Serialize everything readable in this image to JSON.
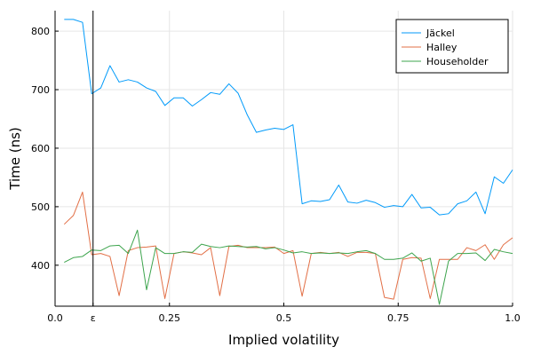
{
  "chart_data": {
    "type": "line",
    "title": "",
    "xlabel": "Implied volatility",
    "ylabel": "Time (ns)",
    "xlim": [
      0.0,
      1.0
    ],
    "ylim": [
      330,
      835
    ],
    "xticks": [
      {
        "value": 0.0,
        "label": "0.0"
      },
      {
        "value": 0.083,
        "label": "ε"
      },
      {
        "value": 0.25,
        "label": "0.25"
      },
      {
        "value": 0.5,
        "label": "0.5"
      },
      {
        "value": 0.75,
        "label": "0.75"
      },
      {
        "value": 1.0,
        "label": "1.0"
      }
    ],
    "yticks": [
      400,
      500,
      600,
      700,
      800
    ],
    "grid": true,
    "legend_position": "top-right",
    "vline_x": 0.083,
    "x": [
      0.02,
      0.04,
      0.06,
      0.08,
      0.1,
      0.12,
      0.14,
      0.16,
      0.18,
      0.2,
      0.22,
      0.24,
      0.26,
      0.28,
      0.3,
      0.32,
      0.34,
      0.36,
      0.38,
      0.4,
      0.42,
      0.44,
      0.46,
      0.48,
      0.5,
      0.52,
      0.54,
      0.56,
      0.58,
      0.6,
      0.62,
      0.64,
      0.66,
      0.68,
      0.7,
      0.72,
      0.74,
      0.76,
      0.78,
      0.8,
      0.82,
      0.84,
      0.86,
      0.88,
      0.9,
      0.92,
      0.94,
      0.96,
      0.98,
      1.0
    ],
    "series": [
      {
        "name": "Jäckel",
        "color": "#009AFA",
        "values": [
          820,
          820,
          815,
          693,
          703,
          741,
          713,
          717,
          713,
          703,
          697,
          673,
          686,
          686,
          672,
          683,
          695,
          692,
          710,
          694,
          657,
          627,
          631,
          634,
          632,
          640,
          505,
          510,
          509,
          512,
          537,
          508,
          506,
          511,
          507,
          499,
          502,
          500,
          521,
          498,
          499,
          486,
          488,
          505,
          510,
          525,
          488,
          551,
          540,
          563
        ]
      },
      {
        "name": "Halley",
        "color": "#E26F46",
        "values": [
          470,
          485,
          525,
          418,
          420,
          415,
          348,
          425,
          430,
          431,
          433,
          343,
          420,
          423,
          421,
          418,
          430,
          348,
          432,
          434,
          430,
          430,
          430,
          431,
          420,
          425,
          347,
          420,
          422,
          420,
          422,
          415,
          422,
          422,
          420,
          345,
          342,
          410,
          413,
          412,
          343,
          410,
          410,
          410,
          430,
          425,
          435,
          410,
          435,
          447
        ]
      },
      {
        "name": "Householder",
        "color": "#3DA44D",
        "values": [
          405,
          413,
          415,
          426,
          425,
          433,
          434,
          420,
          460,
          358,
          430,
          420,
          420,
          423,
          422,
          436,
          432,
          430,
          433,
          432,
          431,
          432,
          428,
          430,
          426,
          421,
          423,
          420,
          421,
          420,
          421,
          420,
          423,
          425,
          420,
          410,
          410,
          412,
          421,
          407,
          412,
          333,
          407,
          420,
          420,
          421,
          408,
          427,
          423,
          420
        ]
      }
    ]
  }
}
